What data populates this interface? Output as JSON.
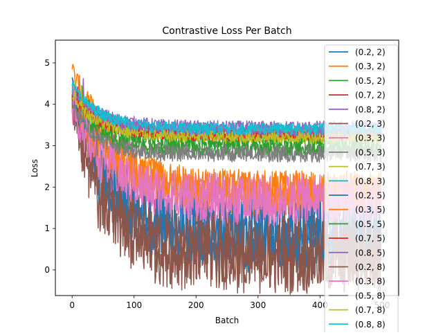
{
  "chart_data": {
    "type": "line",
    "title": "Contrastive Loss Per Batch",
    "xlabel": "Batch",
    "ylabel": "Loss",
    "xlim": [
      -27,
      527
    ],
    "ylim": [
      -0.62,
      5.55
    ],
    "xticks": [
      0,
      100,
      200,
      300,
      400,
      500
    ],
    "yticks": [
      0,
      1,
      2,
      3,
      4,
      5
    ],
    "grid": false,
    "legend_position": "upper right",
    "x_points": 500,
    "series": [
      {
        "name": "(0.2, 2)",
        "color": "#1f77b4",
        "start": 4.5,
        "end": 0.8,
        "decay": 60,
        "noise": 0.9
      },
      {
        "name": "(0.3, 2)",
        "color": "#ff7f0e",
        "start": 4.8,
        "end": 1.8,
        "decay": 70,
        "noise": 0.55
      },
      {
        "name": "(0.5, 2)",
        "color": "#2ca02c",
        "start": 4.3,
        "end": 3.1,
        "decay": 40,
        "noise": 0.2
      },
      {
        "name": "(0.7, 2)",
        "color": "#d62728",
        "start": 4.4,
        "end": 3.3,
        "decay": 50,
        "noise": 0.15
      },
      {
        "name": "(0.8, 2)",
        "color": "#9467bd",
        "start": 4.3,
        "end": 3.45,
        "decay": 50,
        "noise": 0.15
      },
      {
        "name": "(0.2, 3)",
        "color": "#8c564b",
        "start": 4.0,
        "end": 0.3,
        "decay": 50,
        "noise": 0.9
      },
      {
        "name": "(0.3, 3)",
        "color": "#e377c2",
        "start": 4.0,
        "end": 1.6,
        "decay": 60,
        "noise": 0.6
      },
      {
        "name": "(0.5, 3)",
        "color": "#7f7f7f",
        "start": 4.1,
        "end": 2.85,
        "decay": 40,
        "noise": 0.2
      },
      {
        "name": "(0.7, 3)",
        "color": "#bcbd22",
        "start": 4.3,
        "end": 3.25,
        "decay": 45,
        "noise": 0.15
      },
      {
        "name": "(0.8, 3)",
        "color": "#17becf",
        "start": 4.4,
        "end": 3.4,
        "decay": 45,
        "noise": 0.15
      },
      {
        "name": "(0.2, 5)",
        "color": "#1f77b4",
        "start": 4.2,
        "end": 0.9,
        "decay": 55,
        "noise": 0.8
      },
      {
        "name": "(0.3, 5)",
        "color": "#ff7f0e",
        "start": 4.1,
        "end": 1.9,
        "decay": 65,
        "noise": 0.5
      },
      {
        "name": "(0.5, 5)",
        "color": "#2ca02c",
        "start": 4.0,
        "end": 2.95,
        "decay": 40,
        "noise": 0.2
      },
      {
        "name": "(0.7, 5)",
        "color": "#d62728",
        "start": 4.2,
        "end": 3.25,
        "decay": 45,
        "noise": 0.15
      },
      {
        "name": "(0.8, 5)",
        "color": "#9467bd",
        "start": 4.3,
        "end": 3.35,
        "decay": 45,
        "noise": 0.15
      },
      {
        "name": "(0.2, 8)",
        "color": "#8c564b",
        "start": 3.9,
        "end": 0.5,
        "decay": 55,
        "noise": 0.85
      },
      {
        "name": "(0.3, 8)",
        "color": "#e377c2",
        "start": 3.9,
        "end": 1.7,
        "decay": 60,
        "noise": 0.6
      },
      {
        "name": "(0.5, 8)",
        "color": "#7f7f7f",
        "start": 4.0,
        "end": 2.8,
        "decay": 40,
        "noise": 0.2
      },
      {
        "name": "(0.7, 8)",
        "color": "#bcbd22",
        "start": 4.2,
        "end": 3.2,
        "decay": 45,
        "noise": 0.15
      },
      {
        "name": "(0.8, 8)",
        "color": "#17becf",
        "start": 4.5,
        "end": 3.4,
        "decay": 45,
        "noise": 0.15
      }
    ]
  }
}
